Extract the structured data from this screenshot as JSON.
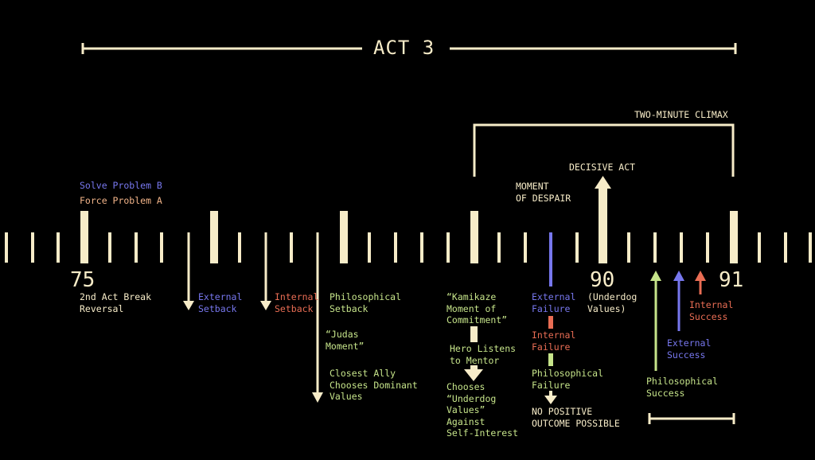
{
  "colors": {
    "cream": "#f7ecc8",
    "green": "#c6e48a",
    "blue": "#7777ee",
    "red": "#e96d54",
    "peach": "#f2b489",
    "background": "#000000"
  },
  "header": {
    "act_title": "ACT 3",
    "climax_title": "TWO-MINUTE CLIMAX",
    "decisive_act": "DECISIVE ACT",
    "moment_of_despair": "MOMENT\nOF DESPAIR"
  },
  "top_left": {
    "solve_problem": "Solve Problem B",
    "force_problem": "Force Problem A"
  },
  "page_numbers": {
    "p75": "75",
    "p90": "90",
    "p91": "91"
  },
  "beats": {
    "second_act_break": "2nd Act Break\nReversal",
    "external_setback": "External\nSetback",
    "internal_setback": "Internal\nSetback",
    "philosophical_setback": "Philosophical\nSetback",
    "judas_moment": "“Judas\nMoment”",
    "closest_ally": "Closest Ally\nChooses Dominant\nValues",
    "kamikaze": "“Kamikaze\nMoment of\nCommitment”",
    "hero_listens": "Hero Listens\nto Mentor",
    "chooses_underdog": "Chooses\n“Underdog\nValues”\nAgainst\nSelf-Interest",
    "external_failure": "External\nFailure",
    "internal_failure": "Internal\nFailure",
    "philosophical_failure": "Philosophical\nFailure",
    "no_positive": "NO POSITIVE\nOUTCOME POSSIBLE",
    "underdog_values": "(Underdog\nValues)",
    "internal_success": "Internal\nSuccess",
    "external_success": "External\nSuccess",
    "philosophical_success": "Philosophical\nSuccess"
  }
}
